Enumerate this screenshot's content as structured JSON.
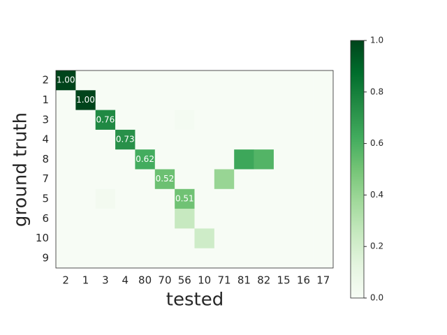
{
  "chart_data": {
    "type": "heatmap",
    "x_label": "tested",
    "y_label": "ground truth",
    "x_categories": [
      "2",
      "1",
      "3",
      "4",
      "80",
      "70",
      "56",
      "10",
      "71",
      "81",
      "82",
      "15",
      "16",
      "17"
    ],
    "y_categories": [
      "2",
      "1",
      "3",
      "4",
      "8",
      "7",
      "5",
      "6",
      "10",
      "9"
    ],
    "values": [
      [
        1.0,
        0,
        0,
        0,
        0,
        0,
        0,
        0,
        0,
        0,
        0,
        0,
        0,
        0
      ],
      [
        0,
        1.0,
        0,
        0,
        0,
        0,
        0,
        0,
        0,
        0,
        0,
        0,
        0,
        0
      ],
      [
        0,
        0,
        0.76,
        0,
        0,
        0,
        0.02,
        0,
        0,
        0,
        0,
        0,
        0,
        0
      ],
      [
        0,
        0,
        0,
        0.73,
        0,
        0,
        0,
        0,
        0,
        0,
        0,
        0,
        0,
        0
      ],
      [
        0,
        0,
        0,
        0,
        0.62,
        0,
        0,
        0,
        0,
        0.64,
        0.58,
        0,
        0,
        0
      ],
      [
        0,
        0,
        0,
        0,
        0,
        0.52,
        0,
        0,
        0.4,
        0,
        0,
        0,
        0,
        0
      ],
      [
        0,
        0,
        0.03,
        0,
        0,
        0,
        0.51,
        0,
        0,
        0,
        0,
        0,
        0,
        0
      ],
      [
        0,
        0,
        0,
        0,
        0,
        0,
        0.25,
        0,
        0,
        0,
        0,
        0,
        0,
        0
      ],
      [
        0,
        0,
        0,
        0,
        0,
        0,
        0,
        0.22,
        0,
        0,
        0,
        0,
        0,
        0
      ],
      [
        0,
        0,
        0,
        0,
        0,
        0,
        0,
        0,
        0,
        0,
        0,
        0,
        0,
        0
      ]
    ],
    "value_labels": [
      [
        "1.00",
        null,
        null,
        null,
        null,
        null,
        null,
        null,
        null,
        null,
        null,
        null,
        null,
        null
      ],
      [
        null,
        "1.00",
        null,
        null,
        null,
        null,
        null,
        null,
        null,
        null,
        null,
        null,
        null,
        null
      ],
      [
        null,
        null,
        "0.76",
        null,
        null,
        null,
        null,
        null,
        null,
        null,
        null,
        null,
        null,
        null
      ],
      [
        null,
        null,
        null,
        "0.73",
        null,
        null,
        null,
        null,
        null,
        null,
        null,
        null,
        null,
        null
      ],
      [
        null,
        null,
        null,
        null,
        "0.62",
        null,
        null,
        null,
        null,
        null,
        null,
        null,
        null,
        null
      ],
      [
        null,
        null,
        null,
        null,
        null,
        "0.52",
        null,
        null,
        null,
        null,
        null,
        null,
        null,
        null
      ],
      [
        null,
        null,
        null,
        null,
        null,
        null,
        "0.51",
        null,
        null,
        null,
        null,
        null,
        null,
        null
      ],
      [
        null,
        null,
        null,
        null,
        null,
        null,
        null,
        null,
        null,
        null,
        null,
        null,
        null,
        null
      ],
      [
        null,
        null,
        null,
        null,
        null,
        null,
        null,
        null,
        null,
        null,
        null,
        null,
        null,
        null
      ],
      [
        null,
        null,
        null,
        null,
        null,
        null,
        null,
        null,
        null,
        null,
        null,
        null,
        null,
        null
      ]
    ],
    "colormap": "Greens",
    "clim": [
      0,
      1
    ],
    "cticks": [
      {
        "value": 0,
        "label": "0.0"
      },
      0.2,
      0.4,
      0.6,
      0.8,
      {
        "value": 1,
        "label": "1.0"
      }
    ]
  }
}
